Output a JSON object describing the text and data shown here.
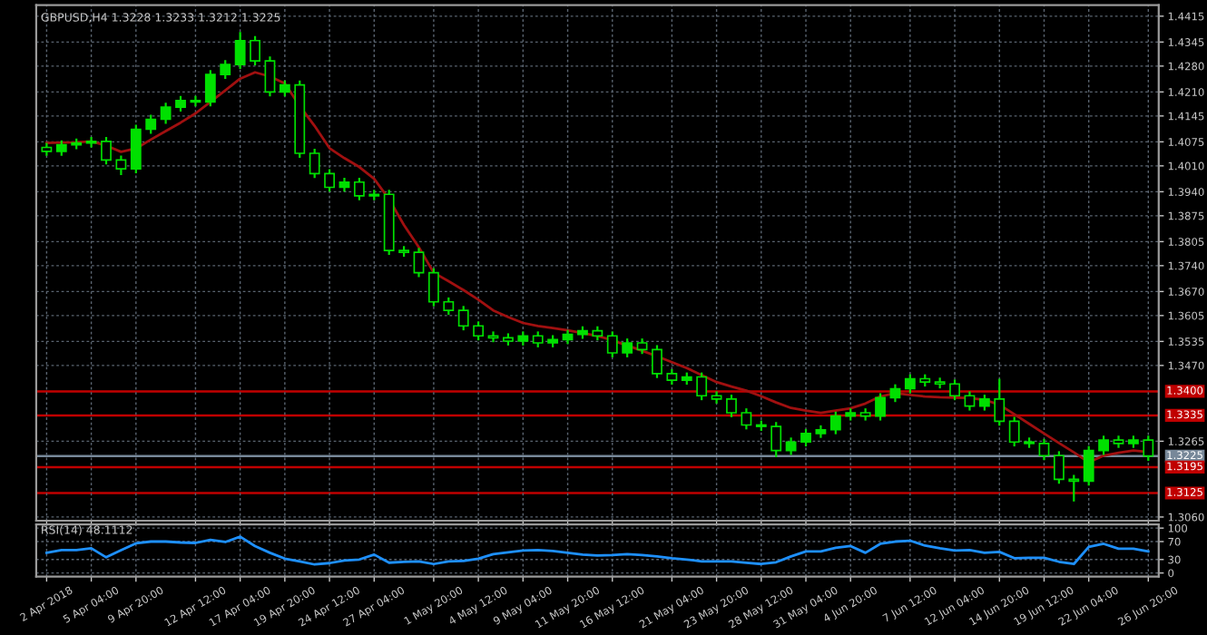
{
  "chart_data": [
    {
      "type": "candlestick",
      "title": "GBPUSD,H4 1.3228 1.3233 1.3212 1.3225",
      "series": [
        {
          "color": "#00e000",
          "ohlc": [
            [
              1.406,
              1.4072,
              1.4037,
              1.4049
            ],
            [
              1.4049,
              1.4079,
              1.4037,
              1.4067
            ],
            [
              1.4067,
              1.4084,
              1.4055,
              1.4072
            ],
            [
              1.4072,
              1.4088,
              1.406,
              1.4076
            ],
            [
              1.4076,
              1.4088,
              1.4014,
              1.4026
            ],
            [
              1.4026,
              1.4038,
              1.3985,
              1.4002
            ],
            [
              1.4002,
              1.4121,
              1.399,
              1.4109
            ],
            [
              1.4109,
              1.4148,
              1.4097,
              1.4136
            ],
            [
              1.4136,
              1.4181,
              1.4124,
              1.4169
            ],
            [
              1.4169,
              1.4199,
              1.4157,
              1.4187
            ],
            [
              1.4187,
              1.4199,
              1.4171,
              1.4183
            ],
            [
              1.4183,
              1.4269,
              1.4171,
              1.4257
            ],
            [
              1.4257,
              1.4296,
              1.4245,
              1.4284
            ],
            [
              1.4284,
              1.4372,
              1.4272,
              1.4349
            ],
            [
              1.4349,
              1.4361,
              1.4282,
              1.4294
            ],
            [
              1.4294,
              1.4306,
              1.4198,
              1.421
            ],
            [
              1.421,
              1.4241,
              1.4198,
              1.4229
            ],
            [
              1.4229,
              1.4241,
              1.4032,
              1.4044
            ],
            [
              1.4044,
              1.4056,
              1.3977,
              1.3989
            ],
            [
              1.3989,
              1.4001,
              1.394,
              1.3952
            ],
            [
              1.3952,
              1.3978,
              1.394,
              1.3966
            ],
            [
              1.3966,
              1.3978,
              1.3917,
              1.3929
            ],
            [
              1.3929,
              1.3945,
              1.3917,
              1.3933
            ],
            [
              1.3933,
              1.3945,
              1.3769,
              1.3781
            ],
            [
              1.3781,
              1.3793,
              1.3764,
              1.3776
            ],
            [
              1.3776,
              1.3788,
              1.3709,
              1.3721
            ],
            [
              1.3721,
              1.3733,
              1.363,
              1.3642
            ],
            [
              1.3642,
              1.3654,
              1.3607,
              1.3619
            ],
            [
              1.3619,
              1.3631,
              1.3565,
              1.3577
            ],
            [
              1.3577,
              1.3589,
              1.3538,
              1.355
            ],
            [
              1.355,
              1.3562,
              1.3533,
              1.3545
            ],
            [
              1.3545,
              1.3557,
              1.3524,
              1.3536
            ],
            [
              1.3536,
              1.3562,
              1.3524,
              1.355
            ],
            [
              1.355,
              1.3562,
              1.3519,
              1.3531
            ],
            [
              1.3531,
              1.3552,
              1.3519,
              1.354
            ],
            [
              1.354,
              1.3566,
              1.3528,
              1.3554
            ],
            [
              1.3554,
              1.3576,
              1.3542,
              1.3564
            ],
            [
              1.3564,
              1.3576,
              1.3538,
              1.355
            ],
            [
              1.355,
              1.3562,
              1.3492,
              1.3504
            ],
            [
              1.3504,
              1.3543,
              1.3492,
              1.3531
            ],
            [
              1.3531,
              1.3543,
              1.3501,
              1.3513
            ],
            [
              1.3513,
              1.3525,
              1.3436,
              1.3448
            ],
            [
              1.3448,
              1.346,
              1.3418,
              1.343
            ],
            [
              1.343,
              1.3451,
              1.3418,
              1.3439
            ],
            [
              1.3439,
              1.3451,
              1.3376,
              1.3388
            ],
            [
              1.3388,
              1.34,
              1.3367,
              1.3379
            ],
            [
              1.3379,
              1.3391,
              1.333,
              1.3342
            ],
            [
              1.3342,
              1.3354,
              1.3297,
              1.3309
            ],
            [
              1.3309,
              1.3321,
              1.3293,
              1.3305
            ],
            [
              1.3305,
              1.3317,
              1.3222,
              1.324
            ],
            [
              1.324,
              1.3275,
              1.3228,
              1.3263
            ],
            [
              1.3263,
              1.3298,
              1.3251,
              1.3286
            ],
            [
              1.3286,
              1.3308,
              1.3274,
              1.3296
            ],
            [
              1.3296,
              1.3345,
              1.3284,
              1.3333
            ],
            [
              1.3333,
              1.3354,
              1.3321,
              1.3342
            ],
            [
              1.3342,
              1.3354,
              1.3321,
              1.3333
            ],
            [
              1.3333,
              1.3395,
              1.3321,
              1.3383
            ],
            [
              1.3383,
              1.3419,
              1.3371,
              1.3407
            ],
            [
              1.3407,
              1.3446,
              1.3395,
              1.3434
            ],
            [
              1.3434,
              1.3446,
              1.3413,
              1.3425
            ],
            [
              1.3425,
              1.3437,
              1.3408,
              1.342
            ],
            [
              1.342,
              1.3432,
              1.3376,
              1.3388
            ],
            [
              1.3388,
              1.34,
              1.3348,
              1.336
            ],
            [
              1.336,
              1.3391,
              1.3348,
              1.3379
            ],
            [
              1.3379,
              1.3434,
              1.3307,
              1.3319
            ],
            [
              1.3319,
              1.3331,
              1.3251,
              1.3263
            ],
            [
              1.3263,
              1.3275,
              1.3247,
              1.3259
            ],
            [
              1.3259,
              1.3271,
              1.3214,
              1.3226
            ],
            [
              1.3226,
              1.3238,
              1.315,
              1.3162
            ],
            [
              1.3162,
              1.3174,
              1.3102,
              1.3157
            ],
            [
              1.3157,
              1.3252,
              1.3145,
              1.324
            ],
            [
              1.324,
              1.328,
              1.3228,
              1.3268
            ],
            [
              1.3268,
              1.328,
              1.3247,
              1.3259
            ],
            [
              1.3259,
              1.328,
              1.3247,
              1.3268
            ],
            [
              1.3268,
              1.328,
              1.3212,
              1.3225
            ]
          ]
        },
        {
          "type": "line",
          "color": "#a01010",
          "values": [
            1.4072,
            1.4073,
            1.4074,
            1.4076,
            1.4065,
            1.4048,
            1.4057,
            1.4081,
            1.4104,
            1.4127,
            1.4152,
            1.4183,
            1.4214,
            1.4246,
            1.4263,
            1.4252,
            1.4233,
            1.4172,
            1.4118,
            1.4058,
            1.4031,
            1.4007,
            1.3975,
            1.392,
            1.385,
            1.379,
            1.3721,
            1.3698,
            1.3674,
            1.3648,
            1.3619,
            1.3601,
            1.3585,
            1.3577,
            1.3571,
            1.3565,
            1.3558,
            1.355,
            1.3538,
            1.3524,
            1.351,
            1.3495,
            1.3479,
            1.3463,
            1.3444,
            1.3425,
            1.3413,
            1.3402,
            1.3387,
            1.337,
            1.3355,
            1.3348,
            1.3342,
            1.3348,
            1.3354,
            1.3367,
            1.3386,
            1.3395,
            1.339,
            1.3386,
            1.3384,
            1.3383,
            1.3382,
            1.3377,
            1.3364,
            1.3338,
            1.3312,
            1.3286,
            1.326,
            1.3235,
            1.3208,
            1.3226,
            1.3234,
            1.324,
            1.3236
          ]
        }
      ],
      "ylim": [
        1.305,
        1.4445
      ],
      "yticks": [
        1.4415,
        1.4345,
        {
          "value": 1.428,
          "label": "1.4280"
        },
        {
          "value": 1.421,
          "label": "1.4210"
        },
        1.4145,
        1.4075,
        {
          "value": 1.401,
          "label": "1.4010"
        },
        {
          "value": 1.394,
          "label": "1.3940"
        },
        1.3875,
        1.3805,
        {
          "value": 1.374,
          "label": "1.3740"
        },
        {
          "value": 1.367,
          "label": "1.3670"
        },
        1.3605,
        1.3535,
        {
          "value": 1.347,
          "label": "1.3470"
        },
        1.3265,
        {
          "value": 1.306,
          "label": "1.3060"
        }
      ],
      "ref_lines": [
        {
          "axis": "y",
          "value": 1.34,
          "label": "1.3400",
          "color": "#c00000"
        },
        {
          "axis": "y",
          "value": 1.3335,
          "label": "1.3335",
          "color": "#c00000"
        },
        {
          "axis": "y",
          "value": 1.3225,
          "label": "1.3225",
          "color": "#778899"
        },
        {
          "axis": "y",
          "value": 1.3195,
          "label": "1.3195",
          "color": "#c00000"
        },
        {
          "axis": "y",
          "value": 1.3125,
          "label": "1.3125",
          "color": "#c00000"
        }
      ],
      "grid": true,
      "tick_labels": "y"
    },
    {
      "type": "line",
      "title": "RSI(14) 48.1112",
      "categories": [
        "2 Apr 2018",
        null,
        null,
        "5 Apr 04:00",
        null,
        null,
        "9 Apr 20:00",
        null,
        null,
        null,
        "12 Apr 12:00",
        null,
        null,
        "17 Apr 04:00",
        null,
        null,
        "19 Apr 20:00",
        null,
        null,
        "24 Apr 12:00",
        null,
        null,
        "27 Apr 04:00",
        null,
        null,
        null,
        "1 May 20:00",
        null,
        null,
        "4 May 12:00",
        null,
        null,
        "9 May 04:00",
        null,
        null,
        "11 May 20:00",
        null,
        null,
        "16 May 12:00",
        null,
        null,
        null,
        "21 May 04:00",
        null,
        null,
        "23 May 20:00",
        null,
        null,
        "28 May 12:00",
        null,
        null,
        "31 May 04:00",
        null,
        null,
        "4 Jun 20:00",
        null,
        null,
        null,
        "7 Jun 12:00",
        null,
        null,
        "12 Jun 04:00",
        null,
        null,
        "14 Jun 20:00",
        null,
        null,
        "19 Jun 12:00",
        null,
        null,
        "22 Jun 04:00",
        null,
        null,
        null,
        "26 Jun 20:00"
      ],
      "series": [
        {
          "color": "#1e90ff",
          "values": [
            45,
            51,
            51,
            55,
            35,
            51,
            66,
            70,
            70,
            68,
            67,
            74,
            69,
            81,
            60,
            45,
            32,
            26,
            19,
            22,
            28,
            30,
            41,
            23,
            25,
            26,
            20,
            26,
            27,
            32,
            42,
            46,
            50,
            51,
            49,
            45,
            41,
            39,
            40,
            42,
            40,
            37,
            33,
            30,
            26,
            26,
            26,
            23,
            20,
            24,
            37,
            48,
            48,
            56,
            60,
            45,
            65,
            70,
            72,
            61,
            55,
            50,
            51,
            45,
            47,
            33,
            34,
            34,
            25,
            20,
            58,
            65,
            54,
            54,
            48
          ]
        }
      ],
      "ylim": [
        -8,
        108
      ],
      "yticks": [
        100,
        70,
        30,
        0
      ],
      "grid": true
    }
  ]
}
